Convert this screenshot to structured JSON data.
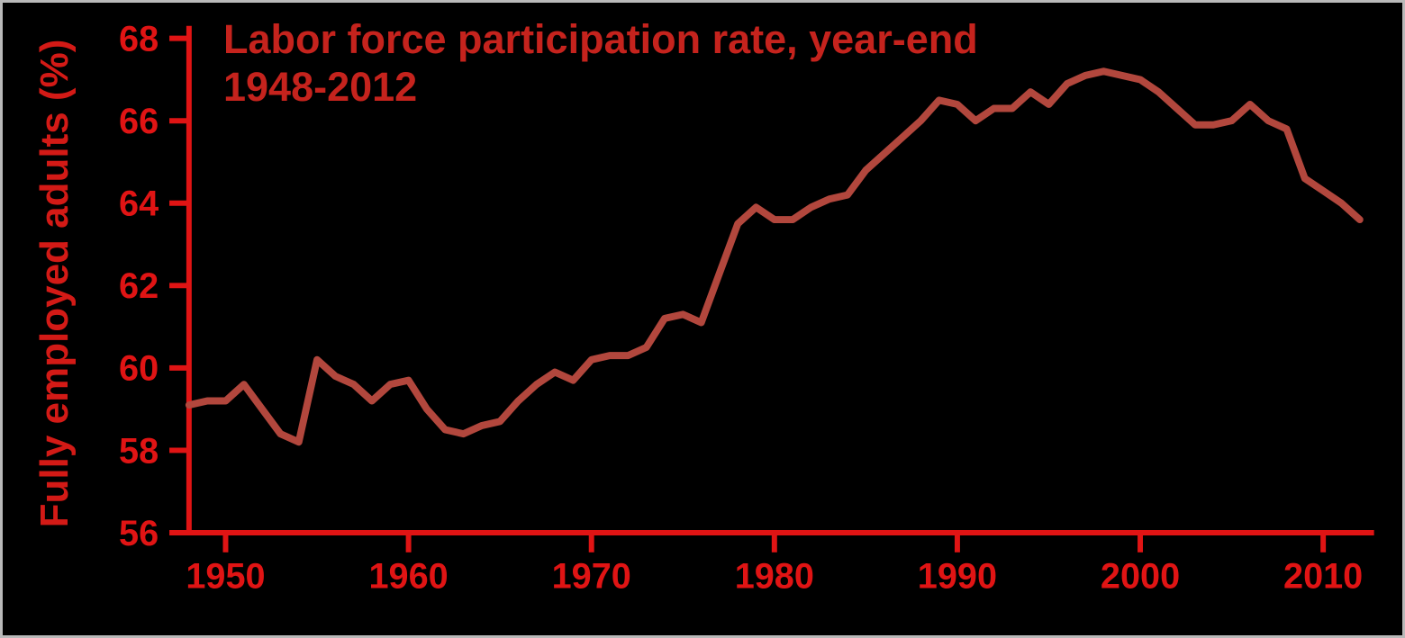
{
  "chart": {
    "title_line1": "Labor force participation rate, year-end",
    "title_line2": "1948-2012",
    "ylabel": "Fully employed adults (%)"
  },
  "chart_data": {
    "type": "line",
    "title": "Labor force participation rate, year-end 1948-2012",
    "xlabel": "",
    "ylabel": "Fully employed adults (%)",
    "series_name": "Labor force participation rate (%)",
    "x": [
      1948,
      1949,
      1950,
      1951,
      1952,
      1953,
      1954,
      1955,
      1956,
      1957,
      1958,
      1959,
      1960,
      1961,
      1962,
      1963,
      1964,
      1965,
      1966,
      1967,
      1968,
      1969,
      1970,
      1971,
      1972,
      1973,
      1974,
      1975,
      1976,
      1977,
      1978,
      1979,
      1980,
      1981,
      1982,
      1983,
      1984,
      1985,
      1986,
      1987,
      1988,
      1989,
      1990,
      1991,
      1992,
      1993,
      1994,
      1995,
      1996,
      1997,
      1998,
      1999,
      2000,
      2001,
      2002,
      2003,
      2004,
      2005,
      2006,
      2007,
      2008,
      2009,
      2010,
      2011,
      2012
    ],
    "values": [
      59.1,
      59.2,
      59.2,
      59.6,
      59.0,
      58.4,
      58.2,
      60.2,
      59.8,
      59.6,
      59.2,
      59.6,
      59.7,
      59.0,
      58.5,
      58.4,
      58.6,
      58.7,
      59.2,
      59.6,
      59.9,
      59.7,
      60.2,
      60.3,
      60.3,
      60.5,
      61.2,
      61.3,
      61.1,
      62.3,
      63.5,
      63.9,
      63.6,
      63.6,
      63.9,
      64.1,
      64.2,
      64.8,
      65.2,
      65.6,
      66.0,
      66.5,
      66.4,
      66.0,
      66.3,
      66.3,
      66.7,
      66.4,
      66.9,
      67.1,
      67.2,
      67.1,
      67.0,
      66.7,
      66.3,
      65.9,
      65.9,
      66.0,
      66.4,
      66.0,
      65.8,
      64.6,
      64.3,
      64.0,
      63.6
    ],
    "ylim": [
      56,
      68
    ],
    "xlim": [
      1948,
      2012
    ],
    "yticks": [
      56,
      58,
      60,
      62,
      64,
      66,
      68
    ],
    "xticks": [
      1950,
      1960,
      1970,
      1980,
      1990,
      2000,
      2010
    ],
    "grid": false,
    "legend": false,
    "background": "#000000",
    "line_color": "#b2473d",
    "axis_color": "#e01414",
    "title_color": "#c5231d"
  }
}
